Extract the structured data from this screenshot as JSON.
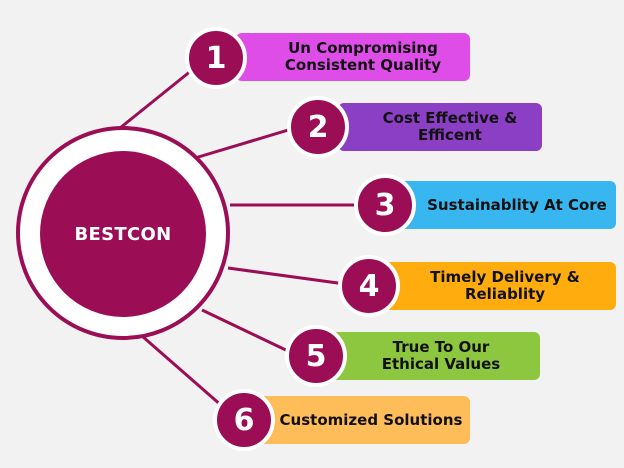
{
  "hub": {
    "label": "BESTCON",
    "color": "#9b0e56"
  },
  "items": [
    {
      "number": "1",
      "text": "Un Compromising\nConsistent Quality",
      "color": "#df4de9"
    },
    {
      "number": "2",
      "text": "Cost Effective &\nEfficent",
      "color": "#8b3fc4"
    },
    {
      "number": "3",
      "text": "Sustainablity At Core",
      "color": "#38b6f0"
    },
    {
      "number": "4",
      "text": "Timely Delivery &\nReliablity",
      "color": "#ffac0f"
    },
    {
      "number": "5",
      "text": "True To Our\nEthical Values",
      "color": "#8dc63f"
    },
    {
      "number": "6",
      "text": "Customized Solutions",
      "color": "#ffbd59"
    }
  ]
}
